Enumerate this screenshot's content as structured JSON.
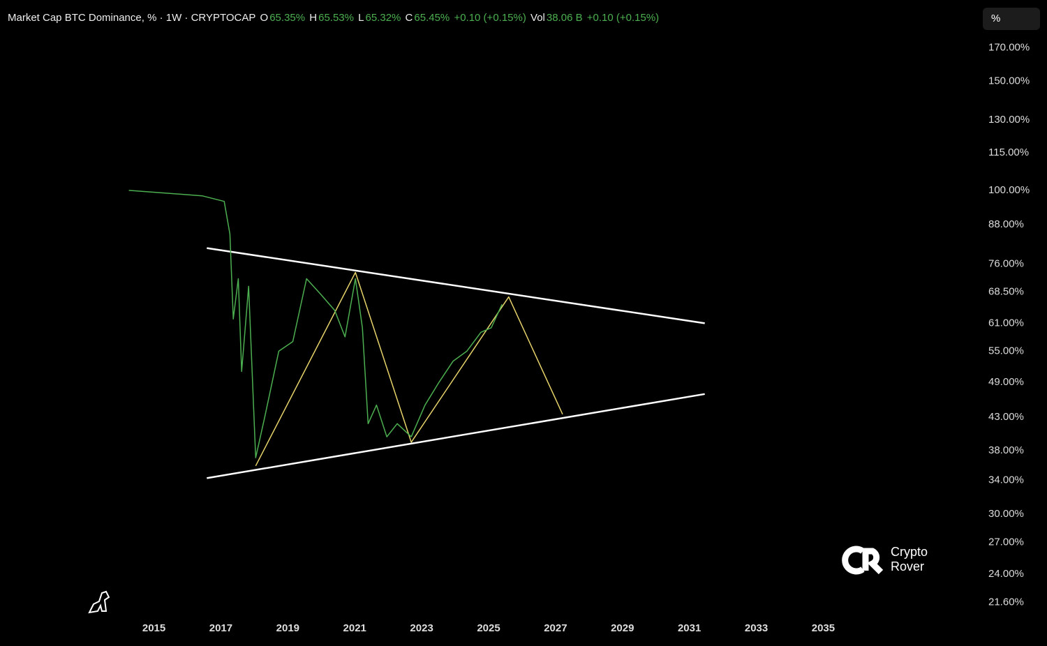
{
  "chart_data": {
    "type": "line",
    "title": "Market Cap BTC Dominance, % · 1W · CRYPTOCAP",
    "ohlc": [
      {
        "key": "O",
        "value": "65.35%"
      },
      {
        "key": "H",
        "value": "65.53%"
      },
      {
        "key": "L",
        "value": "65.32%"
      },
      {
        "key": "C",
        "value": "65.45%"
      }
    ],
    "change": "+0.10 (+0.15%)",
    "volume": {
      "key": "Vol",
      "value": "38.06 B",
      "change": "+0.10 (+0.15%)"
    },
    "scale_button": "%",
    "watermark": [
      "Crypto",
      "Rover"
    ],
    "log_scale": true,
    "grid": false,
    "x": [
      2014.25,
      2016.44,
      2017.1,
      2017.27,
      2017.37,
      2017.52,
      2017.62,
      2017.83,
      2018.04,
      2018.31,
      2018.73,
      2019.15,
      2019.56,
      2019.98,
      2020.4,
      2020.71,
      2021.02,
      2021.23,
      2021.4,
      2021.65,
      2021.96,
      2022.27,
      2022.69,
      2023.1,
      2023.52,
      2023.94,
      2024.35,
      2024.77,
      2025.08,
      2025.4
    ],
    "series": [
      {
        "color": "#4caf50",
        "values": [
          100,
          98,
          96,
          85,
          62,
          72,
          51,
          70,
          37,
          43,
          55,
          57,
          72,
          68,
          64,
          58,
          72,
          60,
          42,
          45,
          40,
          42,
          40,
          45,
          49,
          53,
          55,
          59,
          60,
          65.45
        ]
      }
    ],
    "lines": [
      {
        "color": "#ffffff",
        "x": [
          2016.58,
          2031.46
        ],
        "values": [
          80.7,
          61.0
        ]
      },
      {
        "color": "#ffffff",
        "x": [
          2016.58,
          2031.46
        ],
        "values": [
          34.3,
          46.9
        ]
      },
      {
        "color": "#e6d36a",
        "x": [
          2018.04,
          2021.02,
          2022.69,
          2025.6,
          2027.21
        ],
        "values": [
          35.9,
          73.7,
          39.2,
          67.3,
          43.5
        ]
      }
    ],
    "xlim": [
      2010.4,
      2039.6
    ],
    "xticks": [
      2015,
      2017,
      2019,
      2021,
      2023,
      2025,
      2027,
      2029,
      2031,
      2033,
      2035
    ],
    "ylim": [
      20.7,
      183
    ],
    "yticks": [
      {
        "value": 21.6,
        "label": "21.60%"
      },
      {
        "value": 24,
        "label": "24.00%"
      },
      {
        "value": 27,
        "label": "27.00%"
      },
      {
        "value": 30,
        "label": "30.00%"
      },
      {
        "value": 34,
        "label": "34.00%"
      },
      {
        "value": 38,
        "label": "38.00%"
      },
      {
        "value": 43,
        "label": "43.00%"
      },
      {
        "value": 49,
        "label": "49.00%"
      },
      {
        "value": 55,
        "label": "55.00%"
      },
      {
        "value": 61,
        "label": "61.00%"
      },
      {
        "value": 68.5,
        "label": "68.50%"
      },
      {
        "value": 76,
        "label": "76.00%"
      },
      {
        "value": 88,
        "label": "88.00%"
      },
      {
        "value": 100,
        "label": "100.00%"
      },
      {
        "value": 115,
        "label": "115.00%"
      },
      {
        "value": 130,
        "label": "130.00%"
      },
      {
        "value": 150,
        "label": "150.00%"
      },
      {
        "value": 170,
        "label": "170.00%"
      }
    ]
  }
}
